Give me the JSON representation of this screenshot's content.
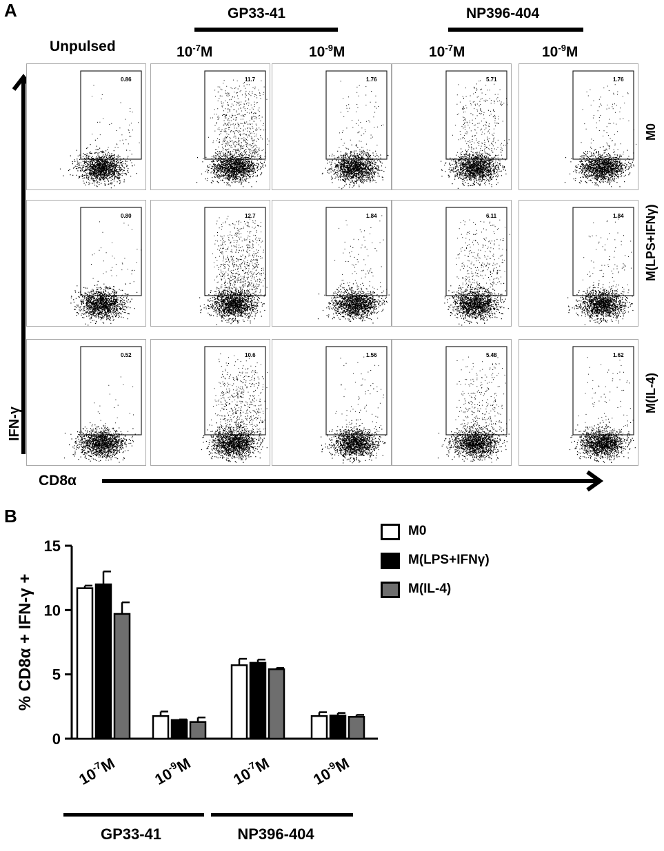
{
  "panel_a": {
    "letter": "A",
    "groups": [
      "GP33-41",
      "NP396-404"
    ],
    "unpulsed_label": "Unpulsed",
    "concentrations": [
      {
        "base": "10",
        "exp": "-7",
        "unit": "M"
      },
      {
        "base": "10",
        "exp": "-9",
        "unit": "M"
      },
      {
        "base": "10",
        "exp": "-7",
        "unit": "M"
      },
      {
        "base": "10",
        "exp": "-9",
        "unit": "M"
      }
    ],
    "row_labels": [
      "M0",
      "M(LPS+IFNγ)",
      "M(IL-4)"
    ],
    "y_axis_label": "IFN-γ",
    "x_axis_label": "CD8α",
    "gate_values": [
      [
        "0.86",
        "11.7",
        "1.76",
        "5.71",
        "1.76"
      ],
      [
        "0.80",
        "12.7",
        "1.84",
        "6.11",
        "1.84"
      ],
      [
        "0.52",
        "10.6",
        "1.56",
        "5.48",
        "1.62"
      ]
    ]
  },
  "panel_b": {
    "letter": "B",
    "legend": [
      "M0",
      "M(LPS+IFNγ)",
      "M(IL-4)"
    ],
    "groups": [
      "GP33-41",
      "NP396-404"
    ],
    "tick_categories": [
      {
        "base": "10",
        "exp": "-7",
        "unit": "M"
      },
      {
        "base": "10",
        "exp": "-9",
        "unit": "M"
      },
      {
        "base": "10",
        "exp": "-7",
        "unit": "M"
      },
      {
        "base": "10",
        "exp": "-9",
        "unit": "M"
      }
    ]
  },
  "chart_data": {
    "type": "bar",
    "categories": [
      "10-7M",
      "10-9M",
      "10-7M",
      "10-9M"
    ],
    "category_groups": [
      "GP33-41",
      "GP33-41",
      "NP396-404",
      "NP396-404"
    ],
    "ylabel": "% CD8α + IFN-γ +",
    "ylim": [
      0,
      15
    ],
    "yticks": [
      0,
      5,
      10,
      15
    ],
    "legend_position": "top-right",
    "series": [
      {
        "name": "M0",
        "color": "#ffffff",
        "values": [
          11.7,
          1.76,
          5.71,
          1.76
        ],
        "errors": [
          0.2,
          0.35,
          0.5,
          0.3
        ]
      },
      {
        "name": "M(LPS+IFNγ)",
        "color": "#000000",
        "values": [
          12.0,
          1.45,
          5.9,
          1.8
        ],
        "errors": [
          1.0,
          0.05,
          0.25,
          0.2
        ]
      },
      {
        "name": "M(IL-4)",
        "color": "#6e6e6e",
        "values": [
          9.7,
          1.3,
          5.4,
          1.7
        ],
        "errors": [
          0.9,
          0.35,
          0.1,
          0.15
        ]
      }
    ]
  }
}
